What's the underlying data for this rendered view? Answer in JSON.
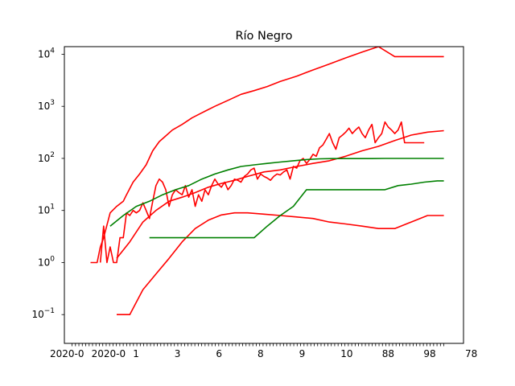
{
  "chart_data": {
    "type": "line",
    "title": "Río Negro",
    "xlabel": "",
    "ylabel": "",
    "yscale": "log",
    "ylim": [
      0.028,
      14000
    ],
    "xlim": [
      -6,
      116
    ],
    "y_ticks": [
      {
        "value": 0.1,
        "base": "10",
        "exp": "−1"
      },
      {
        "value": 1,
        "base": "10",
        "exp": "0"
      },
      {
        "value": 10,
        "base": "10",
        "exp": "1"
      },
      {
        "value": 100,
        "base": "10",
        "exp": "2"
      },
      {
        "value": 1000,
        "base": "10",
        "exp": "3"
      },
      {
        "value": 10000,
        "base": "10",
        "exp": "4"
      }
    ],
    "x_tick_count": 110,
    "x_tick_label_note": "overlapping date labels, illegible; visible fragments",
    "x_tick_fragments": [
      "2020-0",
      "2020-0",
      "1",
      "3",
      "6",
      "8",
      "9",
      "10",
      "88",
      "98",
      "78"
    ],
    "grid": false,
    "legend": "none",
    "colors": {
      "red": "#ff0000",
      "green": "#008000"
    },
    "series": [
      {
        "color": "red",
        "x": [
          2,
          3,
          4,
          5,
          6,
          8,
          10,
          12,
          13,
          15,
          17,
          19,
          21,
          23,
          25,
          27,
          30,
          33,
          36,
          40,
          44,
          48,
          52,
          56,
          60,
          65,
          70,
          75,
          80,
          85,
          90,
          95,
          100,
          104,
          108,
          110
        ],
        "values": [
          1,
          1,
          1,
          2,
          3,
          9,
          12,
          15,
          20,
          35,
          50,
          75,
          140,
          210,
          270,
          350,
          450,
          600,
          750,
          1000,
          1300,
          1700,
          2000,
          2400,
          3000,
          3800,
          5000,
          6500,
          8500,
          11000,
          14000,
          9000,
          9000,
          9000,
          9000,
          9000
        ]
      },
      {
        "color": "red",
        "x": [
          5,
          6,
          7,
          8,
          9,
          10,
          11,
          12,
          13,
          14,
          15,
          16,
          17,
          18,
          19,
          20,
          21,
          22,
          23,
          24,
          25,
          26,
          27,
          28,
          29,
          30,
          31,
          32,
          33,
          34,
          35,
          36,
          37,
          38,
          39,
          40,
          41,
          42,
          43,
          44,
          45,
          46,
          47,
          48,
          49,
          50,
          51,
          52,
          53,
          54,
          55,
          56,
          57,
          58,
          59,
          60,
          61,
          62,
          63,
          64,
          65,
          66,
          67,
          68,
          69,
          70,
          71,
          72,
          73,
          74,
          75,
          76,
          77,
          78,
          79,
          80,
          81,
          82,
          83,
          84,
          85,
          86,
          87,
          88,
          89,
          90,
          91,
          92,
          93,
          94,
          95,
          96,
          97,
          98,
          99,
          100,
          101,
          102,
          103,
          104
        ],
        "values": [
          1,
          5,
          1,
          2,
          1,
          1,
          3,
          3,
          9,
          8,
          10,
          9,
          10,
          14,
          10,
          7,
          15,
          30,
          40,
          35,
          25,
          12,
          20,
          25,
          22,
          20,
          30,
          18,
          25,
          12,
          20,
          15,
          25,
          20,
          30,
          40,
          32,
          28,
          35,
          25,
          30,
          40,
          38,
          35,
          45,
          50,
          60,
          65,
          40,
          50,
          45,
          42,
          38,
          45,
          50,
          48,
          55,
          60,
          40,
          70,
          65,
          90,
          100,
          80,
          95,
          120,
          110,
          160,
          180,
          230,
          300,
          200,
          150,
          250,
          280,
          320,
          380,
          300,
          350,
          400,
          300,
          250,
          350,
          450,
          200,
          250,
          300,
          500,
          400,
          350,
          300,
          350,
          500,
          200,
          200,
          200,
          200,
          200,
          200,
          200
        ]
      },
      {
        "color": "red",
        "x": [
          10,
          14,
          18,
          22,
          26,
          30,
          34,
          38,
          42,
          46,
          50,
          55,
          60,
          65,
          70,
          75,
          80,
          85,
          90,
          95,
          100,
          105,
          110
        ],
        "values": [
          1.2,
          2.5,
          6,
          10,
          15,
          18,
          22,
          28,
          33,
          38,
          45,
          55,
          60,
          70,
          80,
          90,
          110,
          140,
          170,
          220,
          280,
          320,
          340
        ]
      },
      {
        "color": "red",
        "x": [
          10,
          14,
          18,
          22,
          26,
          30,
          34,
          38,
          42,
          46,
          50,
          55,
          60,
          65,
          70,
          75,
          80,
          85,
          90,
          95,
          100,
          105,
          110
        ],
        "values": [
          0.1,
          0.1,
          0.3,
          0.6,
          1.2,
          2.5,
          4.5,
          6.5,
          8.2,
          9,
          9,
          8.5,
          8,
          7.5,
          7,
          6,
          5.5,
          5,
          4.5,
          4.5,
          6,
          8,
          8
        ]
      },
      {
        "color": "green",
        "x": [
          8,
          12,
          16,
          20,
          24,
          28,
          32,
          36,
          40,
          44,
          48,
          52,
          56,
          60,
          64,
          68,
          72,
          76,
          80,
          84,
          88,
          92,
          96,
          100,
          104,
          108,
          110
        ],
        "values": [
          5,
          8,
          12,
          15,
          20,
          25,
          30,
          40,
          50,
          60,
          70,
          75,
          80,
          85,
          90,
          95,
          98,
          99,
          99,
          99,
          99,
          100,
          100,
          100,
          100,
          100,
          100
        ]
      },
      {
        "color": "green",
        "x": [
          20,
          24,
          28,
          32,
          36,
          40,
          44,
          48,
          52,
          56,
          60,
          64,
          68,
          72,
          76,
          80,
          84,
          88,
          92,
          96,
          100,
          104,
          108,
          110
        ],
        "values": [
          3,
          3,
          3,
          3,
          3,
          3,
          3,
          3,
          3,
          5,
          8,
          12,
          25,
          25,
          25,
          25,
          25,
          25,
          25,
          30,
          32,
          35,
          37,
          37
        ]
      }
    ],
    "spiky_series_note": "additional noisy green/red daily series that drop below the visible range"
  }
}
